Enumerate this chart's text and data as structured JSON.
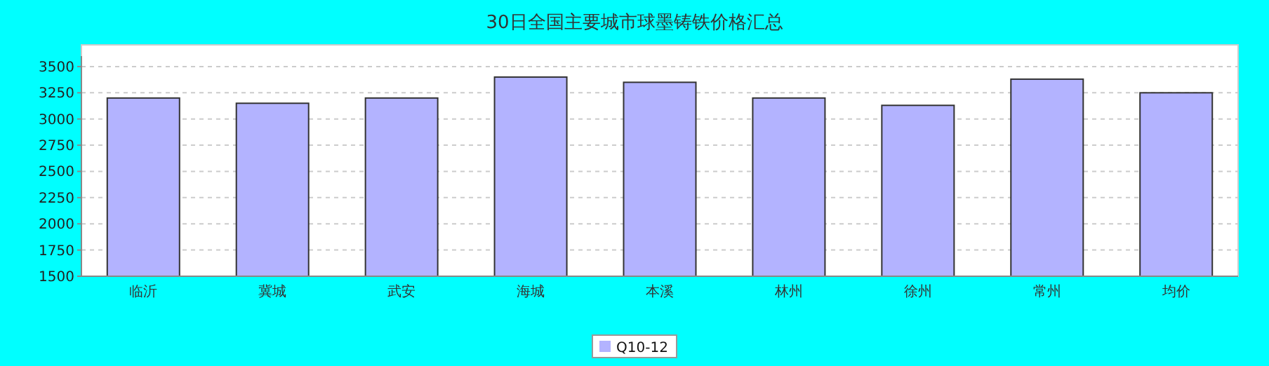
{
  "chart_data": {
    "type": "bar",
    "title": "30日全国主要城市球墨铸铁价格汇总",
    "categories": [
      "临沂",
      "冀城",
      "武安",
      "海城",
      "本溪",
      "林州",
      "徐州",
      "常州",
      "均价"
    ],
    "series": [
      {
        "name": "Q10-12",
        "color": "#b3b3ff",
        "values": [
          3200,
          3150,
          3200,
          3400,
          3350,
          3200,
          3130,
          3380,
          3250
        ]
      }
    ],
    "ylim": [
      1500,
      3600
    ],
    "yticks": [
      1500,
      1750,
      2000,
      2250,
      2500,
      2750,
      3000,
      3250,
      3500
    ],
    "grid": "y",
    "legend": "bottom"
  }
}
